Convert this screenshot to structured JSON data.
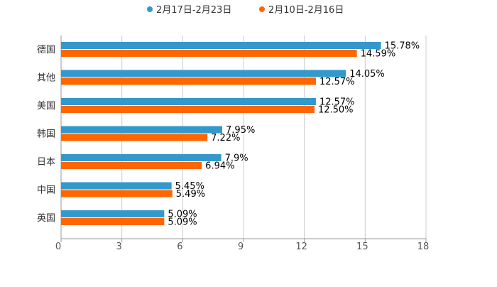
{
  "chart_data": {
    "type": "bar",
    "orientation": "horizontal",
    "categories": [
      "德国",
      "其他",
      "美国",
      "韩国",
      "日本",
      "中国",
      "英国"
    ],
    "series": [
      {
        "name": "2月17日-2月23日",
        "color": "#3399cc",
        "values": [
          15.78,
          14.05,
          12.57,
          7.95,
          7.9,
          5.45,
          5.09
        ],
        "labels": [
          "15.78%",
          "14.05%",
          "12.57%",
          "7.95%",
          "7.9%",
          "5.45%",
          "5.09%"
        ]
      },
      {
        "name": "2月10日-2月16日",
        "color": "#ff6600",
        "values": [
          14.59,
          12.57,
          12.5,
          7.22,
          6.94,
          5.49,
          5.09
        ],
        "labels": [
          "14.59%",
          "12.57%",
          "12.50%",
          "7.22%",
          "6.94%",
          "5.49%",
          "5.09%"
        ]
      }
    ],
    "xlim": [
      0,
      18
    ],
    "xticks": [
      "0",
      "3",
      "6",
      "9",
      "12",
      "15",
      "18"
    ],
    "grid": true,
    "legend_position": "top-center",
    "title": "",
    "xlabel": "",
    "ylabel": ""
  }
}
